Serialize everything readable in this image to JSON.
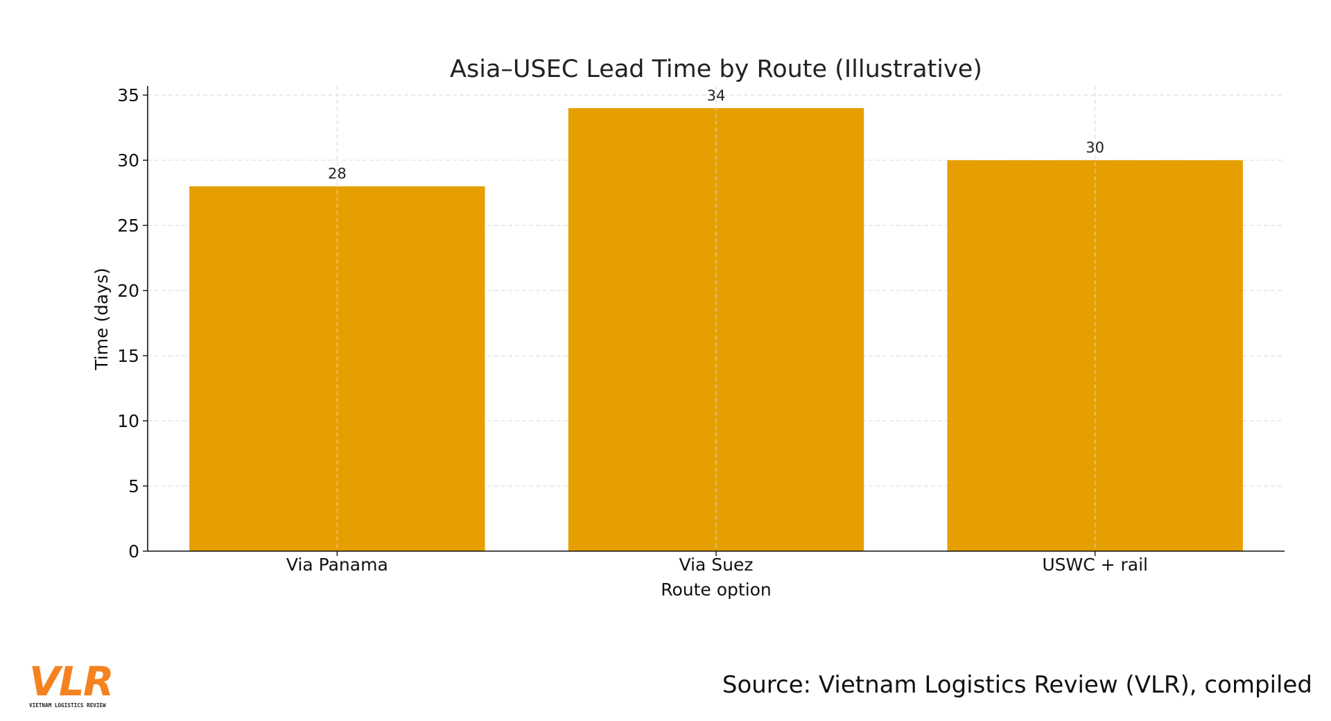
{
  "chart_data": {
    "type": "bar",
    "title": "Asia–USEC Lead Time by Route (Illustrative)",
    "xlabel": "Route option",
    "ylabel": "Time (days)",
    "categories": [
      "Via Panama",
      "Via Suez",
      "USWC + rail"
    ],
    "values": [
      28,
      34,
      30
    ],
    "data_labels": [
      "28",
      "34",
      "30"
    ],
    "ylim": [
      0,
      35.7
    ],
    "yticks": [
      0,
      5,
      10,
      15,
      20,
      25,
      30,
      35
    ],
    "grid": true,
    "bar_color": "#e69f00"
  },
  "logo": {
    "text": "VLR",
    "subtext": "VIETNAM LOGISTICS REVIEW",
    "color": "#f58220"
  },
  "source": "Source: Vietnam Logistics Review (VLR), compiled"
}
